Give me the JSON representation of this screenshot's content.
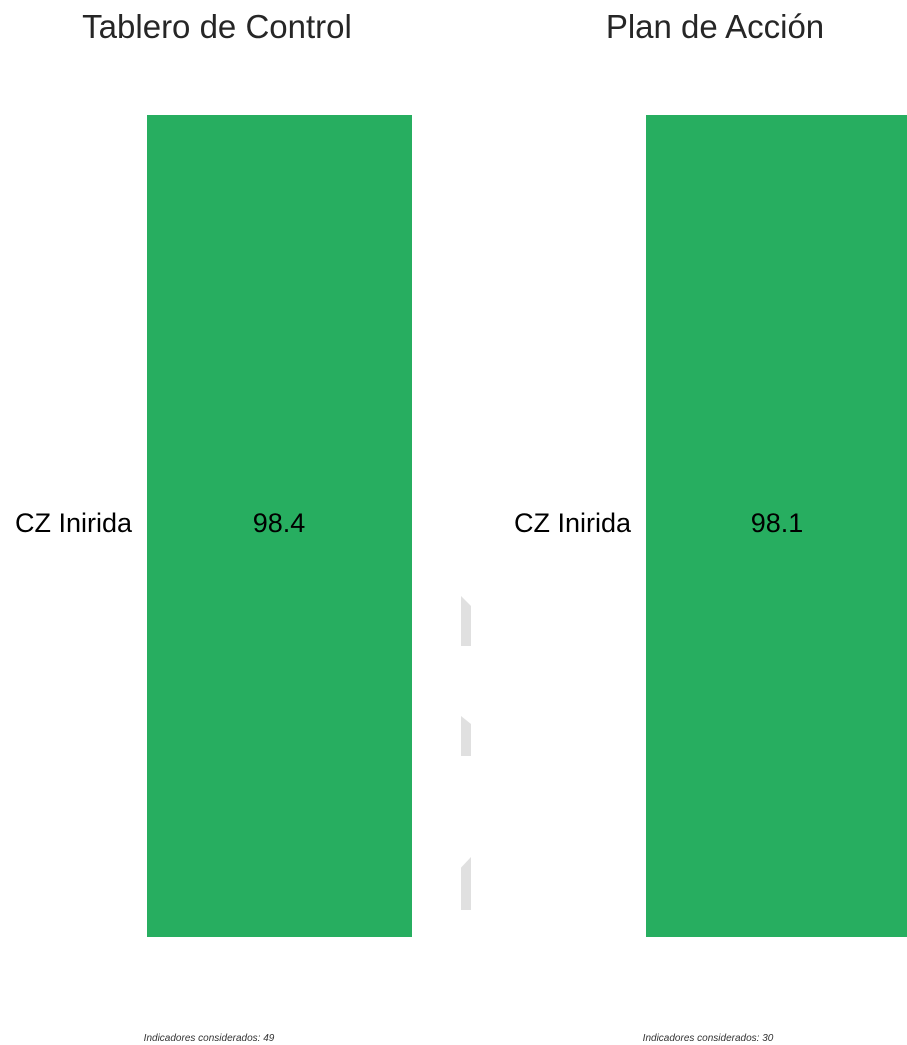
{
  "chart_data": [
    {
      "type": "bar",
      "orientation": "horizontal",
      "title": "Tablero de Control",
      "categories": [
        "CZ Inirida"
      ],
      "values": [
        98.4
      ],
      "value_labels": [
        "98.4"
      ],
      "xlim": [
        0,
        100
      ],
      "grid": false,
      "bar_color": "#27ae60",
      "footnote": "Indicadores considerados: 49"
    },
    {
      "type": "bar",
      "orientation": "horizontal",
      "title": "Plan de Acción",
      "categories": [
        "CZ Inirida"
      ],
      "values": [
        98.1
      ],
      "value_labels": [
        "98.1"
      ],
      "xlim": [
        0,
        100
      ],
      "grid": false,
      "bar_color": "#27ae60",
      "footnote": "Indicadores considerados: 30"
    }
  ],
  "colors": {
    "bar": "#27ae60",
    "title": "#262626",
    "divider": "#e0e0e0"
  }
}
